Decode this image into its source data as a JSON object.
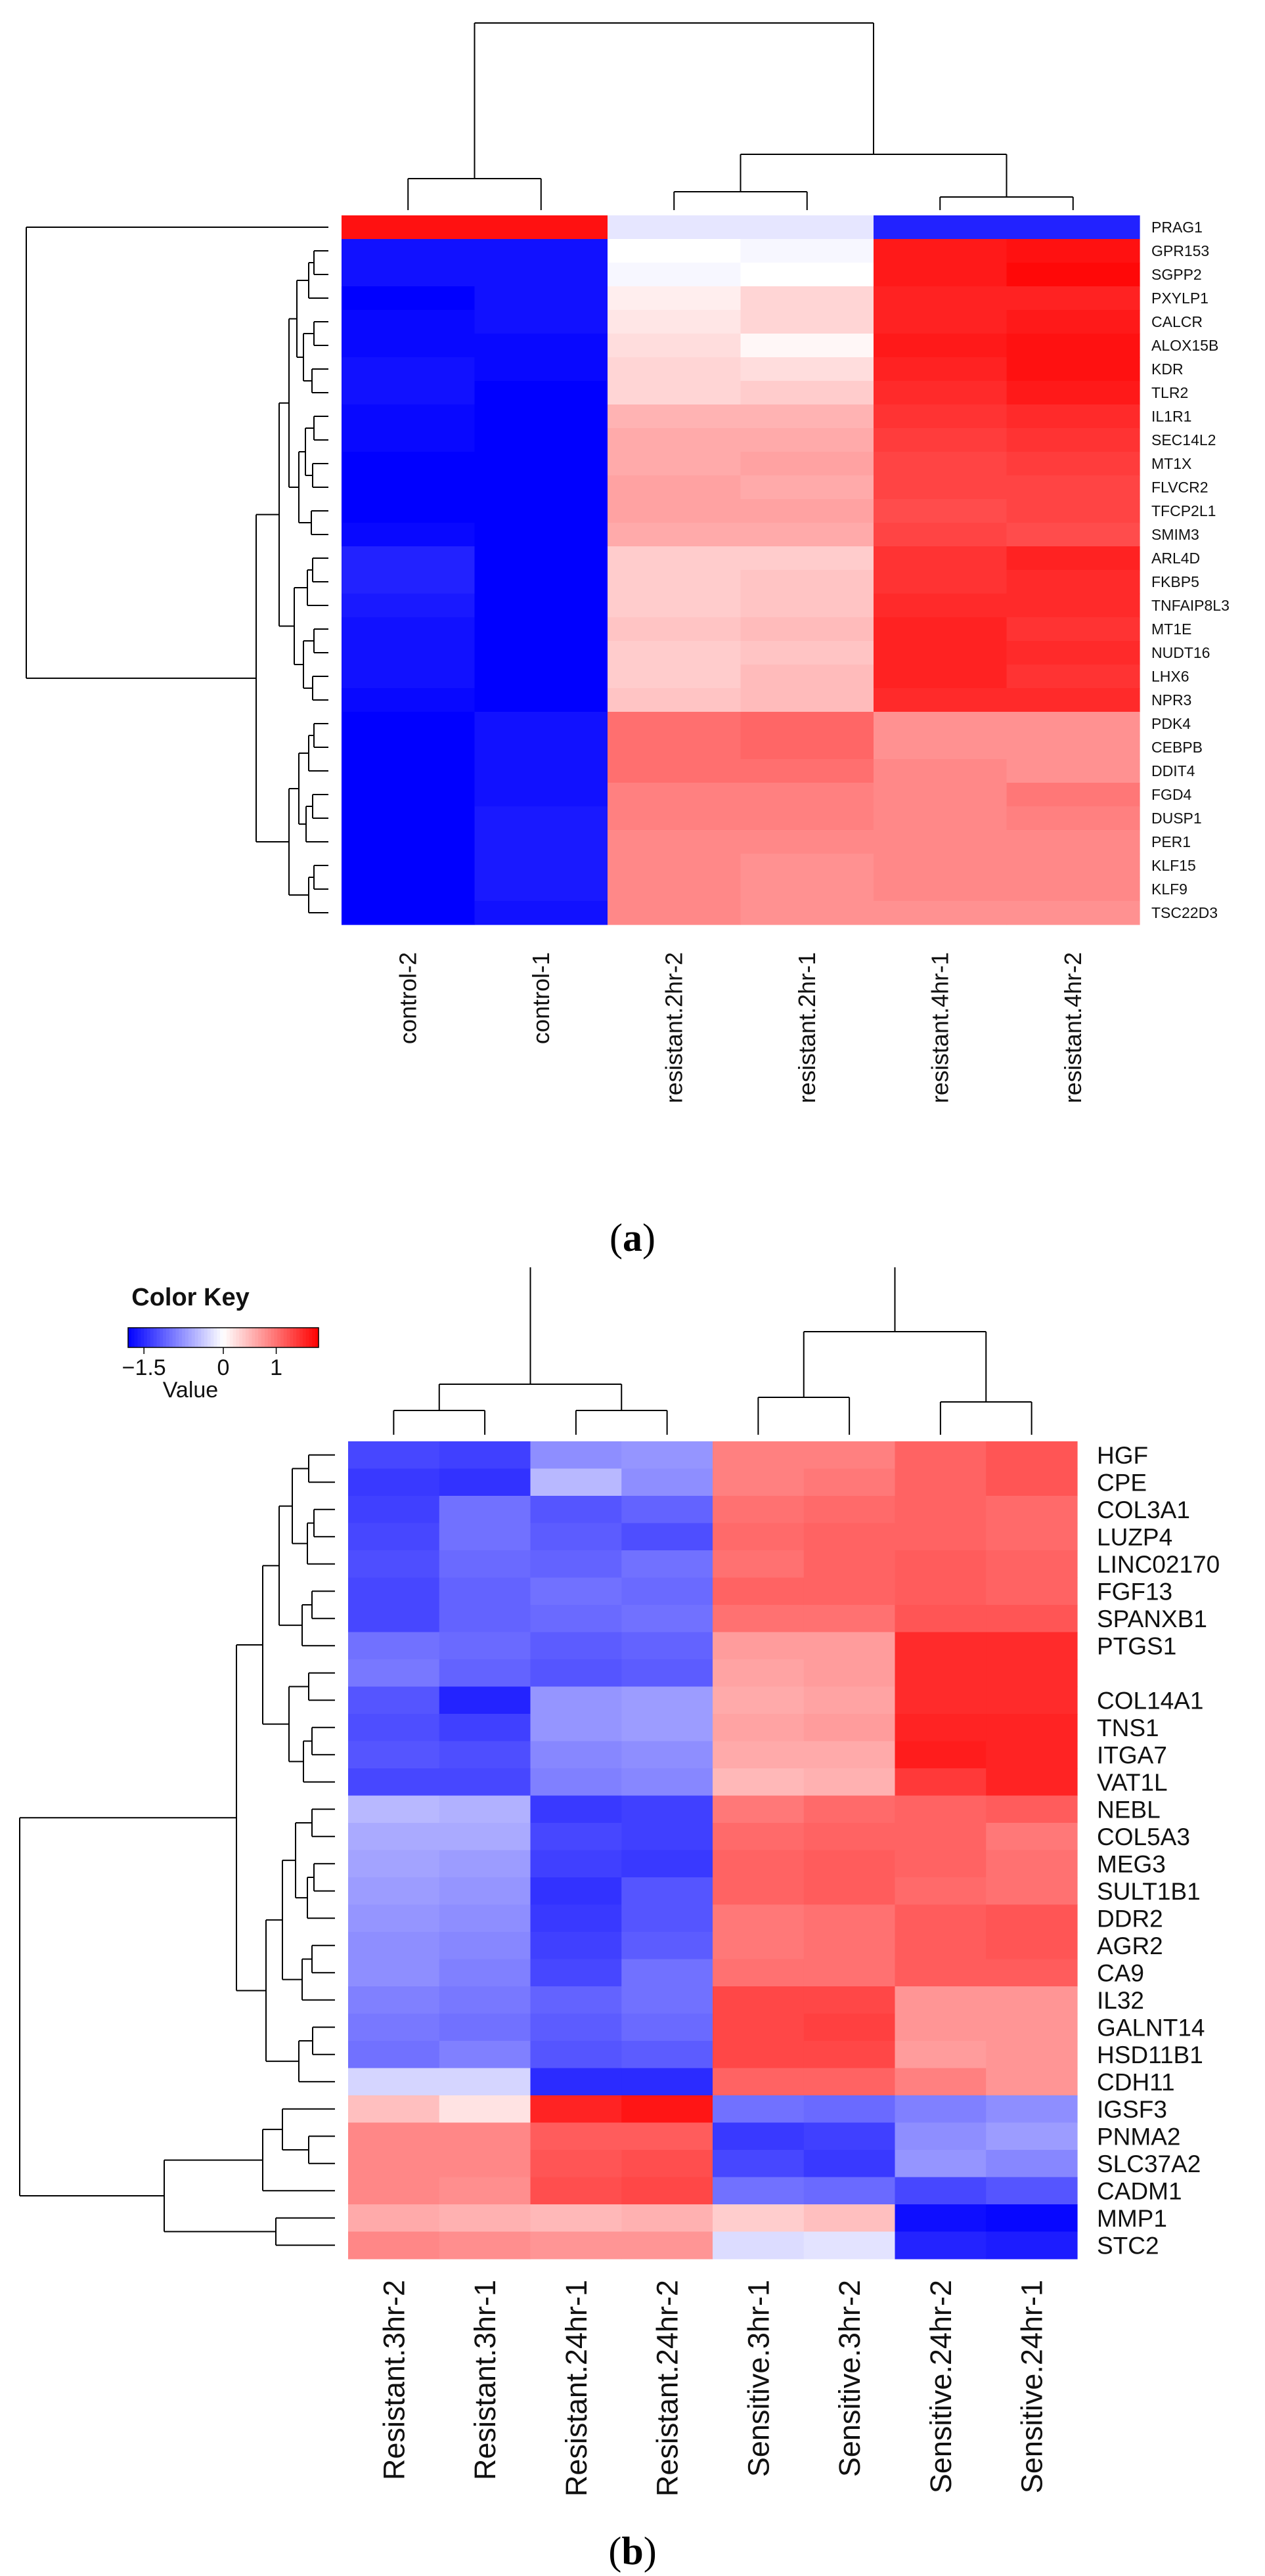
{
  "chart_data": [
    {
      "type": "heatmap",
      "panel": "a",
      "caption_letter": "a",
      "columns": [
        "control-2",
        "control-1",
        "resistant.2hr-2",
        "resistant.2hr-1",
        "resistant.4hr-1",
        "resistant.4hr-2"
      ],
      "rows": [
        "PRAG1",
        "GPR153",
        "SGPP2",
        "PXYLP1",
        "CALCR",
        "ALOX15B",
        "KDR",
        "TLR2",
        "IL1R1",
        "SEC14L2",
        "MT1X",
        "FLVCR2",
        "TFCP2L1",
        "SMIM3",
        "ARL4D",
        "FKBP5",
        "TNFAIP8L3",
        "MT1E",
        "NUDT16",
        "LHX6",
        "NPR3",
        "PDK4",
        "CEBPB",
        "DDIT4",
        "FGD4",
        "DUSP1",
        "PER1",
        "KLF15",
        "KLF9",
        "TSC22D3"
      ],
      "values": [
        [
          1.4,
          1.4,
          -0.15,
          -0.15,
          -1.3,
          -1.3
        ],
        [
          -1.4,
          -1.4,
          0.0,
          -0.05,
          1.35,
          1.4
        ],
        [
          -1.4,
          -1.4,
          -0.05,
          0.0,
          1.35,
          1.45
        ],
        [
          -1.5,
          -1.4,
          0.1,
          0.25,
          1.3,
          1.3
        ],
        [
          -1.45,
          -1.4,
          0.15,
          0.25,
          1.3,
          1.35
        ],
        [
          -1.45,
          -1.45,
          0.2,
          0.05,
          1.35,
          1.4
        ],
        [
          -1.4,
          -1.45,
          0.25,
          0.2,
          1.3,
          1.4
        ],
        [
          -1.4,
          -1.5,
          0.25,
          0.3,
          1.25,
          1.35
        ],
        [
          -1.45,
          -1.55,
          0.45,
          0.45,
          1.2,
          1.25
        ],
        [
          -1.45,
          -1.55,
          0.5,
          0.5,
          1.15,
          1.2
        ],
        [
          -1.5,
          -1.55,
          0.5,
          0.55,
          1.1,
          1.15
        ],
        [
          -1.5,
          -1.6,
          0.55,
          0.5,
          1.1,
          1.1
        ],
        [
          -1.5,
          -1.6,
          0.55,
          0.55,
          1.05,
          1.1
        ],
        [
          -1.45,
          -1.6,
          0.5,
          0.5,
          1.1,
          1.05
        ],
        [
          -1.3,
          -1.5,
          0.3,
          0.3,
          1.2,
          1.3
        ],
        [
          -1.3,
          -1.5,
          0.3,
          0.35,
          1.2,
          1.25
        ],
        [
          -1.35,
          -1.5,
          0.3,
          0.35,
          1.25,
          1.25
        ],
        [
          -1.4,
          -1.5,
          0.35,
          0.4,
          1.3,
          1.2
        ],
        [
          -1.4,
          -1.5,
          0.3,
          0.35,
          1.3,
          1.25
        ],
        [
          -1.4,
          -1.5,
          0.3,
          0.4,
          1.3,
          1.2
        ],
        [
          -1.45,
          -1.5,
          0.35,
          0.4,
          1.25,
          1.25
        ],
        [
          -1.55,
          -1.4,
          0.85,
          0.9,
          0.65,
          0.65
        ],
        [
          -1.55,
          -1.4,
          0.85,
          0.9,
          0.65,
          0.65
        ],
        [
          -1.55,
          -1.4,
          0.85,
          0.85,
          0.7,
          0.65
        ],
        [
          -1.65,
          -1.4,
          0.75,
          0.75,
          0.7,
          0.8
        ],
        [
          -1.7,
          -1.35,
          0.75,
          0.75,
          0.7,
          0.75
        ],
        [
          -1.7,
          -1.35,
          0.7,
          0.7,
          0.7,
          0.7
        ],
        [
          -1.7,
          -1.35,
          0.7,
          0.65,
          0.7,
          0.7
        ],
        [
          -1.65,
          -1.35,
          0.7,
          0.65,
          0.7,
          0.7
        ],
        [
          -1.6,
          -1.4,
          0.7,
          0.65,
          0.65,
          0.65
        ]
      ],
      "color_scale": {
        "low": "#0000ff",
        "mid": "#ffffff",
        "high": "#ff0000",
        "min": -1.5,
        "max": 1.5
      }
    },
    {
      "type": "heatmap",
      "panel": "b",
      "caption_letter": "b",
      "color_key": {
        "title": "Color Key",
        "ticks": [
          "−1.5",
          "0",
          "1"
        ],
        "tick_values": [
          -1.5,
          0,
          1
        ],
        "label": "Value",
        "min": -1.8,
        "max": 1.8
      },
      "columns": [
        "Resistant.3hr-2",
        "Resistant.3hr-1",
        "Resistant.24hr-1",
        "Resistant.24hr-2",
        "Sensitive.3hr-1",
        "Sensitive.3hr-2",
        "Sensitive.24hr-2",
        "Sensitive.24hr-1"
      ],
      "rows": [
        "HGF",
        "CPE",
        "COL3A1",
        "LUZP4",
        "LINC02170",
        "FGF13",
        "SPANXB1",
        "PTGS1",
        "",
        "COL14A1",
        "TNS1",
        "ITGA7",
        "VAT1L",
        "NEBL",
        "COL5A3",
        "MEG3",
        "SULT1B1",
        "DDR2",
        "AGR2",
        "CA9",
        "IL32",
        "GALNT14",
        "HSD11B1",
        "CDH11",
        "IGSF3",
        "PNMA2",
        "SLC37A2",
        "CADM1",
        "MMP1",
        "STC2"
      ],
      "values": [
        [
          -1.3,
          -1.35,
          -0.8,
          -0.75,
          0.9,
          0.9,
          1.1,
          1.2
        ],
        [
          -1.4,
          -1.45,
          -0.5,
          -0.8,
          0.9,
          0.95,
          1.1,
          1.2
        ],
        [
          -1.35,
          -1.0,
          -1.2,
          -1.1,
          1.0,
          1.05,
          1.1,
          1.05
        ],
        [
          -1.3,
          -1.0,
          -1.15,
          -1.25,
          1.05,
          1.1,
          1.1,
          1.05
        ],
        [
          -1.25,
          -1.05,
          -1.1,
          -1.0,
          1.0,
          1.1,
          1.15,
          1.1
        ],
        [
          -1.3,
          -1.1,
          -1.0,
          -1.05,
          1.1,
          1.1,
          1.15,
          1.1
        ],
        [
          -1.3,
          -1.1,
          -1.05,
          -1.0,
          1.0,
          1.0,
          1.2,
          1.2
        ],
        [
          -1.0,
          -1.05,
          -1.15,
          -1.1,
          0.7,
          0.7,
          1.5,
          1.5
        ],
        [
          -0.95,
          -1.1,
          -1.2,
          -1.15,
          0.65,
          0.7,
          1.5,
          1.5
        ],
        [
          -1.2,
          -1.55,
          -0.75,
          -0.7,
          0.6,
          0.65,
          1.5,
          1.5
        ],
        [
          -1.25,
          -1.35,
          -0.75,
          -0.7,
          0.65,
          0.7,
          1.55,
          1.55
        ],
        [
          -1.2,
          -1.25,
          -0.85,
          -0.8,
          0.6,
          0.6,
          1.6,
          1.55
        ],
        [
          -1.3,
          -1.3,
          -0.9,
          -0.85,
          0.5,
          0.55,
          1.4,
          1.55
        ],
        [
          -0.5,
          -0.55,
          -1.4,
          -1.35,
          0.95,
          1.05,
          1.1,
          1.15
        ],
        [
          -0.6,
          -0.6,
          -1.3,
          -1.35,
          1.05,
          1.1,
          1.1,
          0.95
        ],
        [
          -0.65,
          -0.7,
          -1.35,
          -1.4,
          1.1,
          1.15,
          1.1,
          1.0
        ],
        [
          -0.7,
          -0.75,
          -1.45,
          -1.2,
          1.1,
          1.15,
          1.05,
          1.0
        ],
        [
          -0.75,
          -0.8,
          -1.4,
          -1.2,
          0.95,
          1.0,
          1.15,
          1.2
        ],
        [
          -0.8,
          -0.85,
          -1.35,
          -1.15,
          0.95,
          1.0,
          1.15,
          1.2
        ],
        [
          -0.8,
          -0.9,
          -1.3,
          -1.0,
          1.0,
          1.0,
          1.15,
          1.15
        ],
        [
          -0.9,
          -0.95,
          -1.1,
          -1.0,
          1.3,
          1.3,
          0.75,
          0.75
        ],
        [
          -0.95,
          -1.0,
          -1.15,
          -1.05,
          1.3,
          1.35,
          0.75,
          0.75
        ],
        [
          -1.0,
          -0.9,
          -1.2,
          -1.15,
          1.3,
          1.3,
          0.7,
          0.75
        ],
        [
          -0.3,
          -0.3,
          -1.5,
          -1.5,
          1.1,
          1.1,
          0.9,
          0.75
        ],
        [
          0.45,
          0.2,
          1.55,
          1.65,
          -1.0,
          -1.05,
          -0.9,
          -0.8
        ],
        [
          0.85,
          0.85,
          1.15,
          1.15,
          -1.4,
          -1.35,
          -0.8,
          -0.7
        ],
        [
          0.85,
          0.85,
          1.2,
          1.25,
          -1.3,
          -1.4,
          -0.75,
          -0.85
        ],
        [
          0.85,
          0.8,
          1.25,
          1.3,
          -1.0,
          -1.05,
          -1.3,
          -1.2
        ],
        [
          0.6,
          0.55,
          0.5,
          0.55,
          0.35,
          0.45,
          -1.7,
          -1.75
        ],
        [
          0.85,
          0.8,
          0.75,
          0.75,
          -0.25,
          -0.2,
          -1.55,
          -1.6
        ]
      ],
      "color_scale": {
        "low": "#0000ff",
        "mid": "#ffffff",
        "high": "#ff0000",
        "min": -1.8,
        "max": 1.8
      }
    }
  ],
  "captions": {
    "a": {
      "open": "(",
      "letter": "a",
      "close": ")"
    },
    "b": {
      "open": "(",
      "letter": "b",
      "close": ")"
    }
  }
}
